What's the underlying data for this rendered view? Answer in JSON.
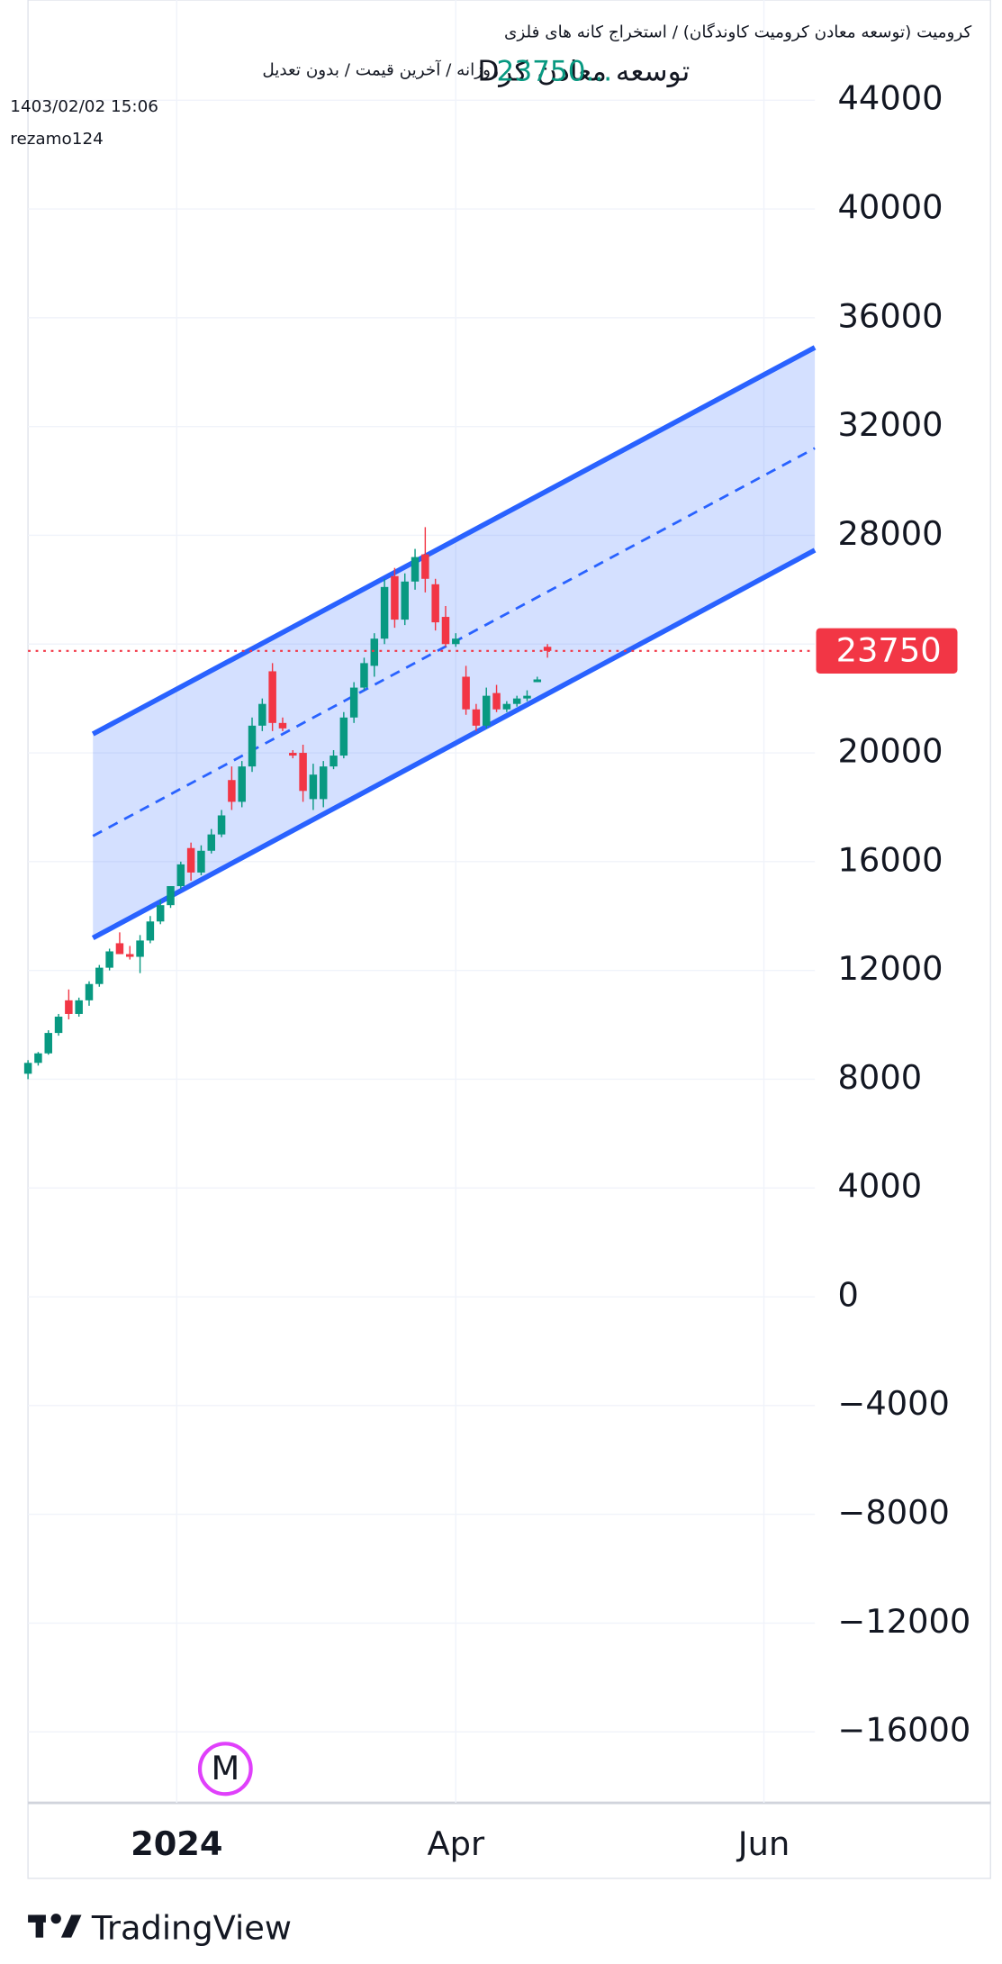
{
  "chart_data": {
    "type": "candlestick",
    "title": "کرومیت (توسعه معادن کرومیت کاوندگان) / استخراج کانه های فلزی",
    "subtitle": "روزانه / آخرین قیمت / بدون تعدیل",
    "date": "1403/02/02 15:06",
    "author": "rezamo124",
    "symbol": "توسعه معادن کرD",
    "price_text": "23750...",
    "watermark": "M",
    "brand": "TradingView",
    "categories": [
      null,
      null,
      null,
      null,
      null,
      null,
      null,
      null,
      null,
      null,
      null,
      null,
      null,
      null,
      null,
      null,
      null,
      null,
      null,
      null,
      null,
      null,
      null,
      null,
      null,
      null,
      null,
      null,
      null,
      null,
      null,
      null,
      null,
      null,
      null,
      null,
      null,
      null,
      null,
      null,
      null,
      null,
      null,
      null,
      null,
      null,
      null,
      null,
      null,
      null,
      null,
      null
    ],
    "open": [
      8200,
      8600,
      8950,
      9700,
      10900,
      10400,
      10900,
      11500,
      12100,
      13000,
      12600,
      12500,
      13100,
      13800,
      14400,
      15100,
      16500,
      15600,
      16400,
      17000,
      19000,
      18200,
      19500,
      21000,
      23000,
      21100,
      20000,
      20000,
      18300,
      18300,
      19500,
      19900,
      21300,
      22400,
      23200,
      24200,
      26500,
      24900,
      26300,
      27300,
      26200,
      25000,
      24000,
      22800,
      21600,
      21000,
      22200,
      21600,
      21800,
      22000,
      22600,
      23900
    ],
    "high": [
      8700,
      9000,
      9800,
      10400,
      11300,
      11000,
      11600,
      12200,
      12800,
      13400,
      12900,
      13300,
      14000,
      14600,
      15100,
      16000,
      16700,
      16600,
      17200,
      17900,
      19500,
      19700,
      21300,
      22000,
      23300,
      21300,
      20100,
      20300,
      19600,
      19700,
      20100,
      21500,
      22600,
      23500,
      24400,
      26400,
      26800,
      26600,
      27500,
      28300,
      26400,
      25400,
      24400,
      23200,
      21800,
      22400,
      22500,
      21900,
      22100,
      22300,
      22800,
      24000
    ],
    "low": [
      8000,
      8500,
      8900,
      9600,
      10200,
      10300,
      10700,
      11400,
      12000,
      12600,
      12400,
      11900,
      13000,
      13700,
      14300,
      15000,
      15300,
      15500,
      16300,
      16900,
      17900,
      18000,
      19300,
      20800,
      20800,
      20800,
      19800,
      18200,
      17900,
      18000,
      19400,
      19800,
      21100,
      22300,
      22800,
      24000,
      24600,
      24700,
      26000,
      25900,
      24500,
      23900,
      23900,
      21400,
      20800,
      20900,
      21500,
      21500,
      21700,
      21900,
      22600,
      23500
    ],
    "close": [
      8600,
      8950,
      9700,
      10300,
      10400,
      10900,
      11500,
      12100,
      12700,
      12600,
      12500,
      13100,
      13800,
      14400,
      15100,
      15900,
      15600,
      16400,
      17000,
      17700,
      18200,
      19500,
      21000,
      21800,
      21100,
      20900,
      19900,
      18600,
      19200,
      19500,
      19900,
      21300,
      22400,
      23300,
      24200,
      26100,
      24900,
      26300,
      27200,
      26400,
      24800,
      24000,
      24200,
      21600,
      21000,
      22100,
      21600,
      21800,
      22000,
      22100,
      22700,
      23750
    ],
    "up_color": "#089981",
    "down_color": "#f23645",
    "channel": {
      "x": [
        6.375,
        77.25
      ],
      "upper": [
        20694,
        34907
      ],
      "middle": [
        16944,
        31204
      ],
      "lower": [
        13194,
        27454
      ],
      "color": "#2962ff"
    },
    "xlim": [
      0,
      77.25
    ],
    "xticks": [
      {
        "value": 14.6,
        "label": "2024"
      },
      {
        "value": 42,
        "label": "Apr"
      },
      {
        "value": 72.25,
        "label": "Jun"
      }
    ],
    "ylim": [
      -18611,
      47685
    ],
    "yticks": [
      44000,
      40000,
      36000,
      32000,
      28000,
      24000,
      20000,
      16000,
      12000,
      8000,
      4000,
      0,
      {
        "value": -4000,
        "label": "−4000"
      },
      {
        "value": -8000,
        "label": "−8000"
      },
      {
        "value": -12000,
        "label": "−12000"
      },
      {
        "value": -16000,
        "label": "−16000"
      }
    ],
    "grid": true
  }
}
